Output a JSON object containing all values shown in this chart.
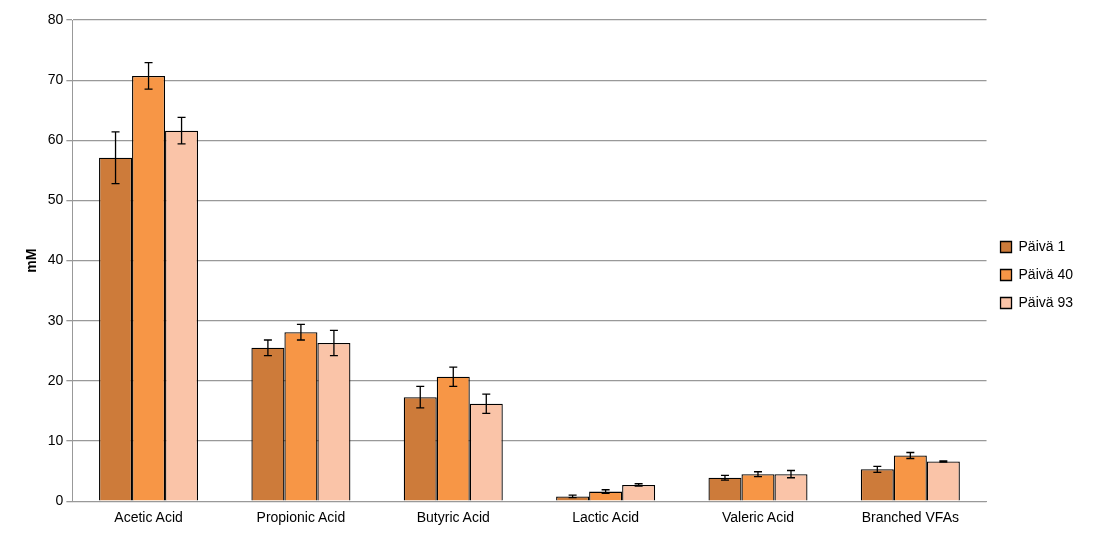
{
  "chart_data": {
    "type": "bar",
    "ylabel": "mM",
    "categories": [
      "Acetic Acid",
      "Propionic Acid",
      "Butyric Acid",
      "Lactic Acid",
      "Valeric Acid",
      "Branched VFAs"
    ],
    "series": [
      {
        "name": "Päivä 1",
        "color": "#cd7b3a",
        "values": [
          57.1,
          25.5,
          17.3,
          0.8,
          3.9,
          5.3
        ],
        "errors": [
          4.3,
          1.3,
          1.8,
          0.2,
          0.4,
          0.5
        ]
      },
      {
        "name": "Päivä 40",
        "color": "#f79646",
        "values": [
          70.7,
          28.1,
          20.7,
          1.6,
          4.5,
          7.6
        ],
        "errors": [
          2.2,
          1.3,
          1.6,
          0.3,
          0.4,
          0.5
        ]
      },
      {
        "name": "Päivä 93",
        "color": "#fac4a8",
        "values": [
          61.6,
          26.3,
          16.2,
          2.7,
          4.5,
          6.6
        ],
        "errors": [
          2.2,
          2.1,
          1.6,
          0.2,
          0.6,
          0.1
        ]
      }
    ],
    "ylim": [
      0,
      80
    ],
    "yticks": [
      0,
      10,
      20,
      30,
      40,
      50,
      60,
      70,
      80
    ],
    "grid": "y",
    "legend": "right"
  }
}
